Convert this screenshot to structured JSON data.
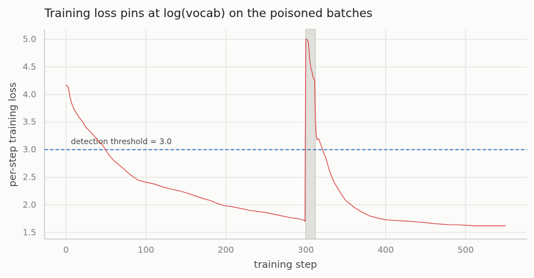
{
  "chart_data": {
    "type": "line",
    "title": "Training loss pins at log(vocab) on the poisoned batches",
    "xlabel": "training step",
    "ylabel": "per-step training loss",
    "xlim": [
      -27,
      577
    ],
    "ylim": [
      1.38,
      5.18
    ],
    "xticks": [
      0,
      100,
      200,
      300,
      400,
      500
    ],
    "yticks": [
      1.5,
      2.0,
      2.5,
      3.0,
      3.5,
      4.0,
      4.5,
      5.0
    ],
    "grid": true,
    "legend": "none",
    "series": [
      {
        "color": "#d94040",
        "x": [
          0,
          3,
          5,
          7,
          10,
          13,
          16,
          20,
          25,
          30,
          35,
          40,
          45,
          50,
          55,
          60,
          70,
          80,
          90,
          100,
          110,
          120,
          130,
          140,
          150,
          160,
          170,
          180,
          190,
          200,
          210,
          220,
          230,
          240,
          250,
          260,
          270,
          280,
          290,
          298,
          299,
          300,
          301,
          302,
          303,
          304,
          305,
          306,
          308,
          309,
          310,
          311,
          312,
          313,
          314,
          316,
          318,
          320,
          322,
          325,
          330,
          335,
          340,
          345,
          350,
          360,
          370,
          380,
          390,
          400,
          410,
          420,
          430,
          440,
          450,
          460,
          470,
          480,
          490,
          500,
          510,
          520,
          530,
          540,
          550
        ],
        "y": [
          4.18,
          4.12,
          3.95,
          3.84,
          3.73,
          3.66,
          3.59,
          3.52,
          3.4,
          3.33,
          3.25,
          3.16,
          3.1,
          2.98,
          2.88,
          2.8,
          2.68,
          2.55,
          2.45,
          2.41,
          2.38,
          2.33,
          2.29,
          2.26,
          2.22,
          2.17,
          2.12,
          2.08,
          2.02,
          1.98,
          1.96,
          1.93,
          1.9,
          1.88,
          1.86,
          1.83,
          1.8,
          1.77,
          1.75,
          1.72,
          1.7,
          5.0,
          5.0,
          4.99,
          4.95,
          4.8,
          4.62,
          4.5,
          4.4,
          4.32,
          4.28,
          4.27,
          3.5,
          3.28,
          3.18,
          3.2,
          3.12,
          3.05,
          2.95,
          2.85,
          2.6,
          2.42,
          2.3,
          2.18,
          2.08,
          1.96,
          1.87,
          1.8,
          1.76,
          1.73,
          1.72,
          1.71,
          1.7,
          1.69,
          1.68,
          1.66,
          1.65,
          1.64,
          1.64,
          1.63,
          1.62,
          1.62,
          1.62,
          1.62,
          1.62
        ]
      }
    ],
    "shaded_regions": [
      {
        "x_start": 300,
        "x_end": 312,
        "color": "#e2e0db"
      }
    ],
    "reference_lines": [
      {
        "axis": "y",
        "value": 3.0,
        "label": "detection threshold = 3.0",
        "color": "#3a78c9",
        "style": "dashed"
      }
    ]
  }
}
